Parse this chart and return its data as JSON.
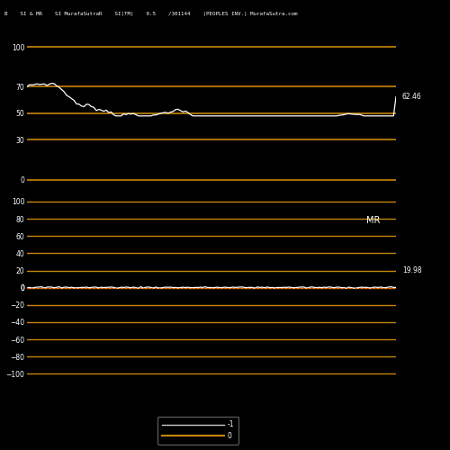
{
  "title_text": "B    SI & MR    SI MurafaSutraR    SI(TM)    0.5    /301144    (PEOPLES INV.) MurafaSutra.com",
  "background_color": "#000000",
  "golden_color": "#C8860A",
  "rsi_hlines": [
    100,
    70,
    50,
    30,
    0
  ],
  "mrsi_hlines": [
    100,
    80,
    60,
    40,
    20,
    0,
    -20,
    -40,
    -60,
    -80,
    -100
  ],
  "rsi_yticks": [
    0,
    30,
    50,
    70,
    100
  ],
  "mrsi_yticks": [
    -100,
    -80,
    -60,
    -40,
    -20,
    0,
    20,
    40,
    60,
    80,
    100
  ],
  "rsi_last_value": 62.46,
  "mrsi_last_value": 19.98,
  "mrsi_label": "MR",
  "legend_labels": [
    "-1",
    "0"
  ],
  "legend_line_colors": [
    "#CCCCCC",
    "#C8860A"
  ],
  "n_points": 150,
  "rsi_ylim": [
    -10,
    115
  ],
  "mrsi_ylim": [
    -110,
    110
  ]
}
